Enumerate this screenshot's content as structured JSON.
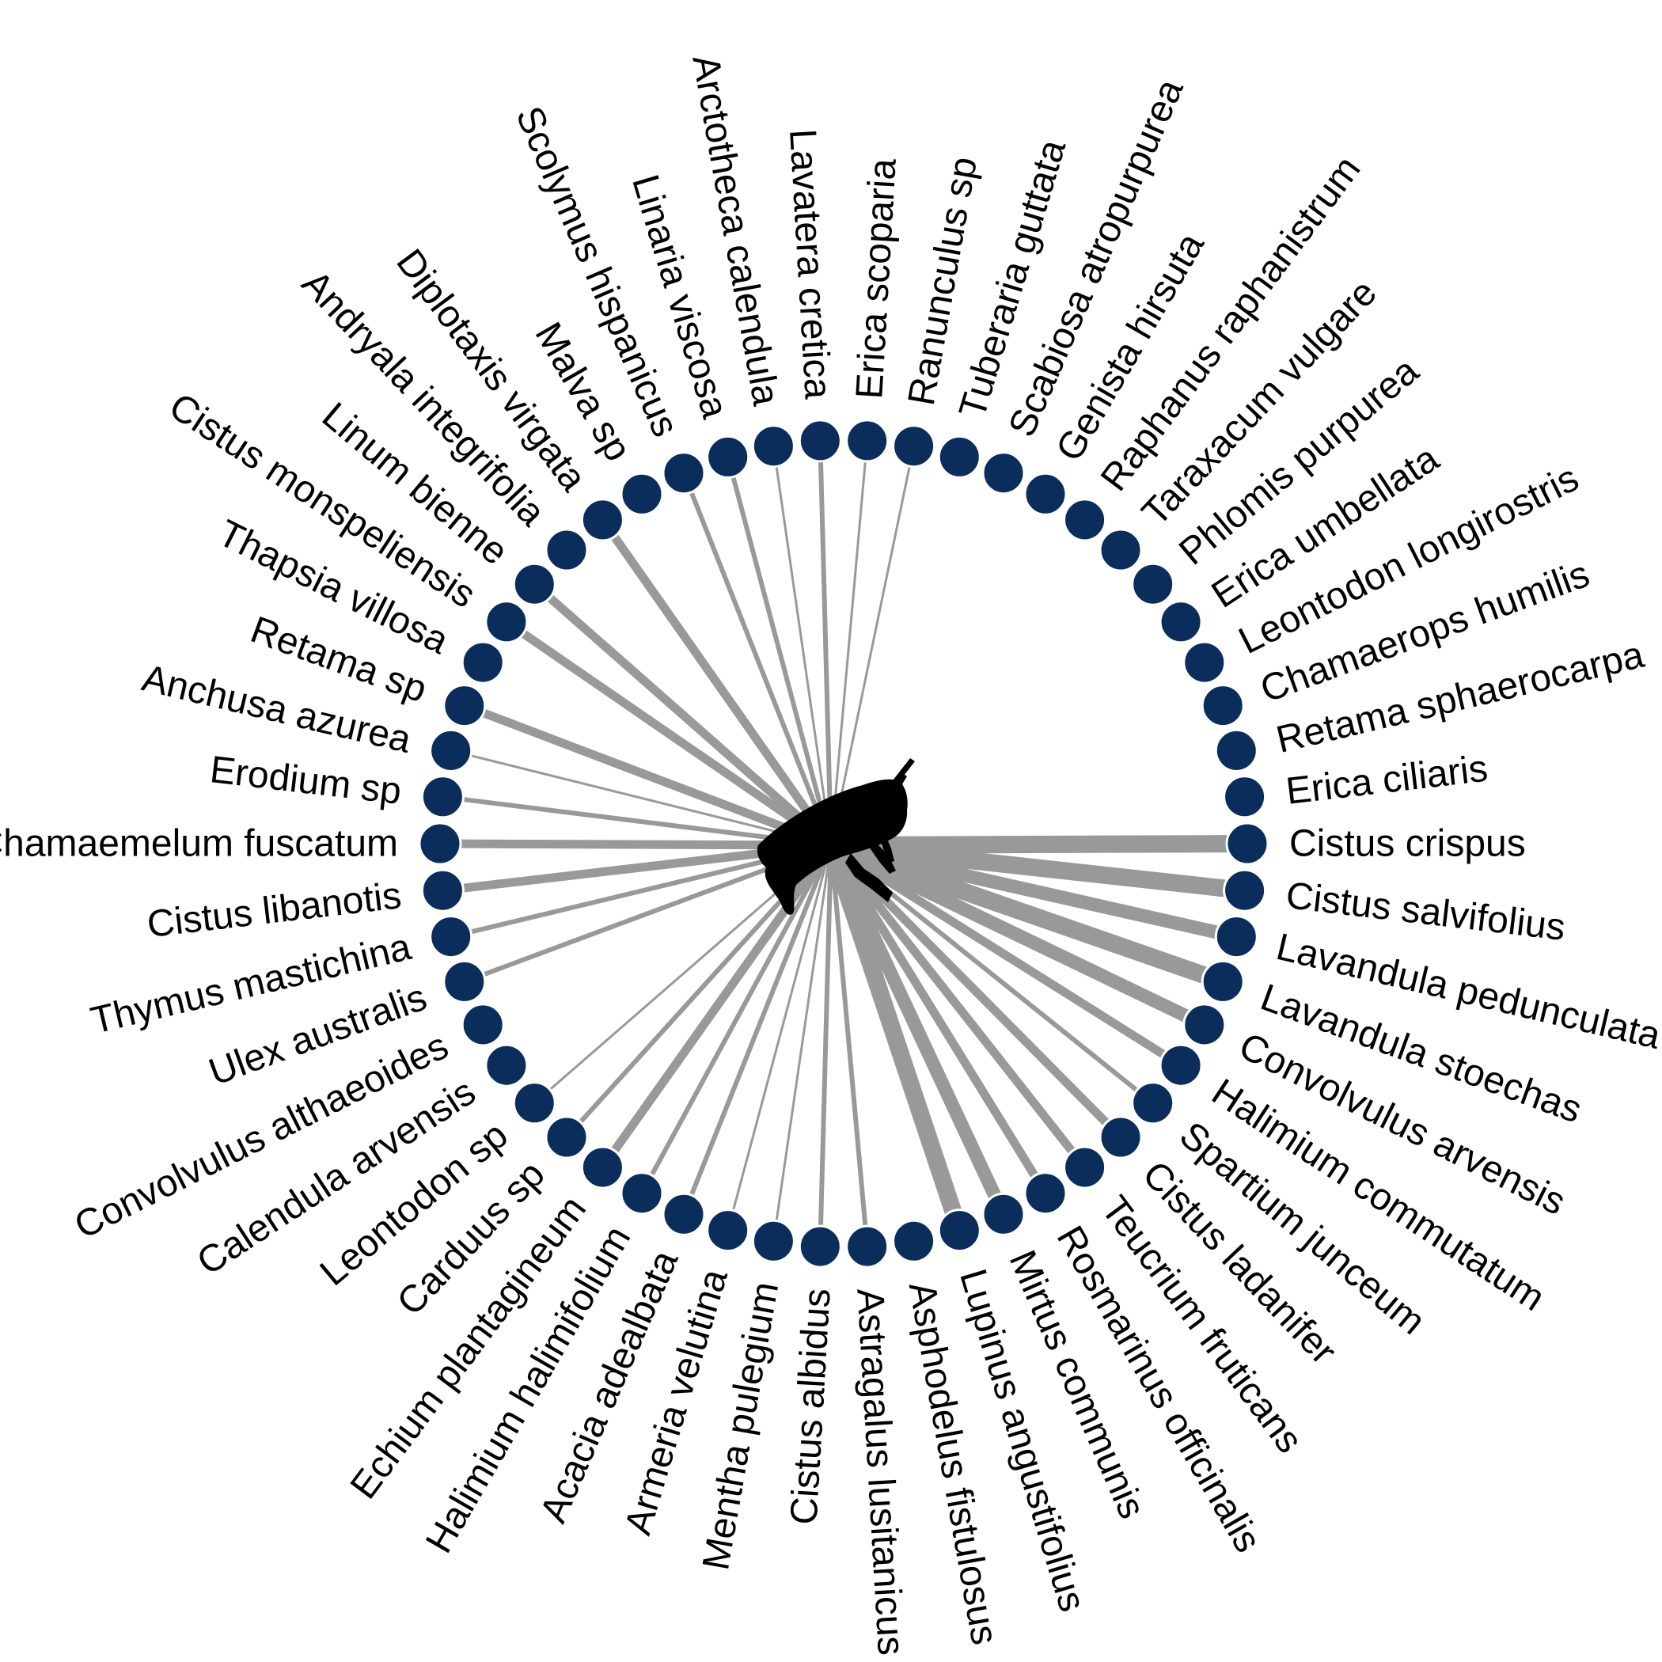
{
  "colors": {
    "link": "#999999",
    "node": "#0b2d5c",
    "node_stroke": "#ffffff",
    "bee": "#000000",
    "label": "#000000"
  },
  "center_icon": "bee-silhouette-icon",
  "chart_data": {
    "type": "network",
    "hub": "",
    "nodes": [
      {
        "label": "Cistus crispus",
        "weight": 5
      },
      {
        "label": "Erica ciliaris",
        "weight": 0
      },
      {
        "label": "Retama sphaerocarpa",
        "weight": 0
      },
      {
        "label": "Chamaerops humilis",
        "weight": 0
      },
      {
        "label": "Leontodon longirostris",
        "weight": 0
      },
      {
        "label": "Erica umbellata",
        "weight": 0
      },
      {
        "label": "Phlomis purpurea",
        "weight": 0
      },
      {
        "label": "Taraxacum vulgare",
        "weight": 0
      },
      {
        "label": "Raphanus raphanistrum",
        "weight": 0
      },
      {
        "label": "Genista hirsuta",
        "weight": 0
      },
      {
        "label": "Scabiosa atropurpurea",
        "weight": 0
      },
      {
        "label": "Tuberaria guttata",
        "weight": 0
      },
      {
        "label": "Ranunculus sp",
        "weight": 1
      },
      {
        "label": "Erica scoparia",
        "weight": 1
      },
      {
        "label": "Lavatera cretica",
        "weight": 2
      },
      {
        "label": "Arctotheca calendula",
        "weight": 1
      },
      {
        "label": "Linaria viscosa",
        "weight": 2
      },
      {
        "label": "Scolymus hispanicus",
        "weight": 2
      },
      {
        "label": "Malva sp",
        "weight": 0
      },
      {
        "label": "Diplotaxis virgata",
        "weight": 3
      },
      {
        "label": "Andryala integrifolia",
        "weight": 0
      },
      {
        "label": "Linum bienne",
        "weight": 3
      },
      {
        "label": "Cistus monspeliensis",
        "weight": 3
      },
      {
        "label": "Thapsia villosa",
        "weight": 0
      },
      {
        "label": "Retama sp",
        "weight": 3
      },
      {
        "label": "Anchusa azurea",
        "weight": 1
      },
      {
        "label": "Erodium sp",
        "weight": 2
      },
      {
        "label": "Chamaemelum fuscatum",
        "weight": 3
      },
      {
        "label": "Cistus libanotis",
        "weight": 3
      },
      {
        "label": "Thymus mastichina",
        "weight": 2
      },
      {
        "label": "Ulex australis",
        "weight": 2
      },
      {
        "label": "Convolvulus althaeoides",
        "weight": 0
      },
      {
        "label": "Calendula arvensis",
        "weight": 0
      },
      {
        "label": "Leontodon sp",
        "weight": 1
      },
      {
        "label": "Carduus sp",
        "weight": 2
      },
      {
        "label": "Echium plantagineum",
        "weight": 3
      },
      {
        "label": "Halimium halimifolium",
        "weight": 2
      },
      {
        "label": "Acacia adealbata",
        "weight": 2
      },
      {
        "label": "Armeria velutina",
        "weight": 1
      },
      {
        "label": "Mentha pulegium",
        "weight": 1
      },
      {
        "label": "Cistus albidus",
        "weight": 2
      },
      {
        "label": "Astragalus lusitanicus",
        "weight": 2
      },
      {
        "label": "Asphodelus fistulosus",
        "weight": 0
      },
      {
        "label": "Lupinus angustifolius",
        "weight": 5
      },
      {
        "label": "Mirtus communis",
        "weight": 4
      },
      {
        "label": "Rosmarinus officinalis",
        "weight": 3
      },
      {
        "label": "Teucrium fruticans",
        "weight": 3
      },
      {
        "label": "Cistus ladanifer",
        "weight": 3
      },
      {
        "label": "Spartium junceum",
        "weight": 2
      },
      {
        "label": "Halimium commutatum",
        "weight": 3
      },
      {
        "label": "Convolvulus arvensis",
        "weight": 4
      },
      {
        "label": "Lavandula stoechas",
        "weight": 5
      },
      {
        "label": "Lavandula pedunculata",
        "weight": 4
      },
      {
        "label": "Cistus salvifolius",
        "weight": 5
      }
    ]
  }
}
